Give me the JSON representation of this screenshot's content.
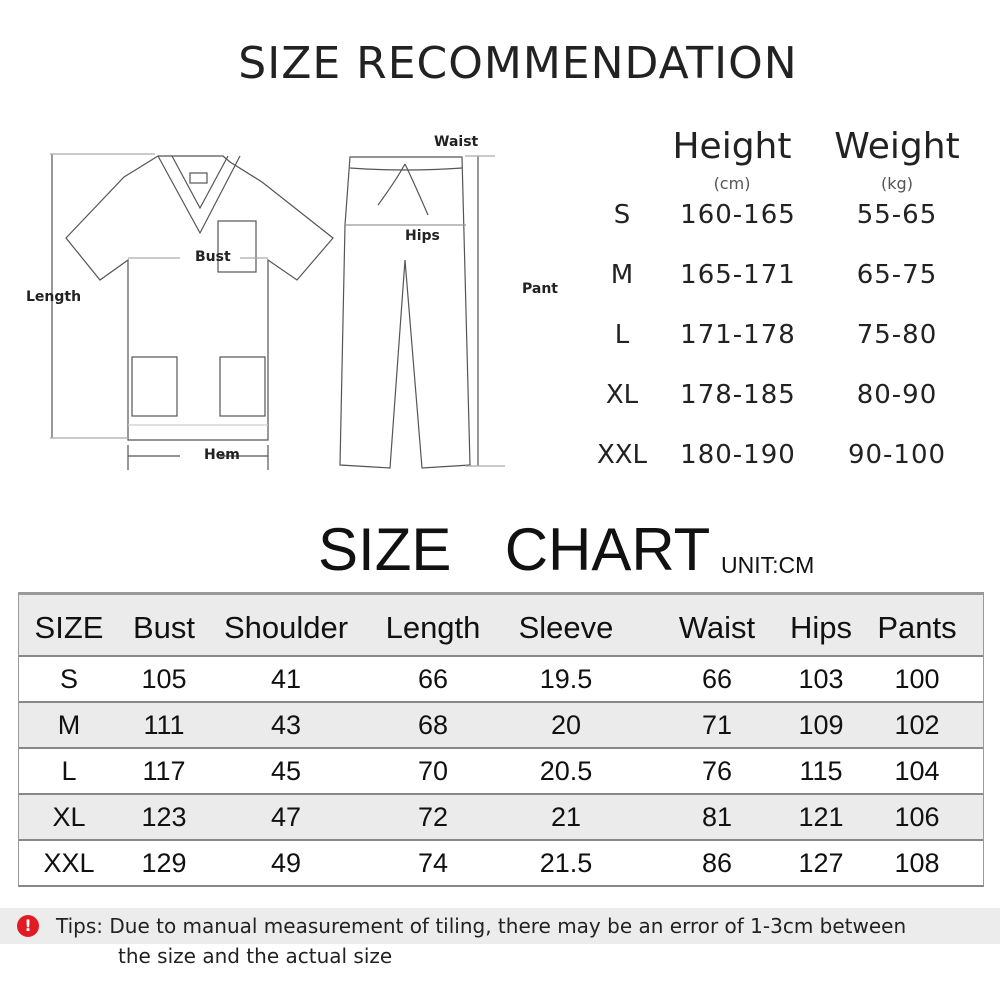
{
  "title": "SIZE RECOMMENDATION",
  "diagram": {
    "top_labels": {
      "bust": "Bust",
      "length": "Length",
      "hem": "Hem"
    },
    "pants_labels": {
      "waist": "Waist",
      "hips": "Hips",
      "pant": "Pant"
    }
  },
  "recommendation": {
    "height_label": "Height",
    "height_unit": "(cm)",
    "weight_label": "Weight",
    "weight_unit": "(kg)",
    "rows": [
      {
        "size": "S",
        "height": "160-165",
        "weight": "55-65"
      },
      {
        "size": "M",
        "height": "165-171",
        "weight": "65-75"
      },
      {
        "size": "L",
        "height": "171-178",
        "weight": "75-80"
      },
      {
        "size": "XL",
        "height": "178-185",
        "weight": "80-90"
      },
      {
        "size": "XXL",
        "height": "180-190",
        "weight": "90-100"
      }
    ]
  },
  "size_chart": {
    "title": "SIZE  CHART",
    "unit": "UNIT:CM",
    "headers": [
      "SIZE",
      "Bust",
      "Shoulder",
      "Length",
      "Sleeve",
      "Waist",
      "Hips",
      "Pants"
    ],
    "rows": [
      [
        "S",
        "105",
        "41",
        "66",
        "19.5",
        "66",
        "103",
        "100"
      ],
      [
        "M",
        "111",
        "43",
        "68",
        "20",
        "71",
        "109",
        "102"
      ],
      [
        "L",
        "117",
        "45",
        "70",
        "20.5",
        "76",
        "115",
        "104"
      ],
      [
        "XL",
        "123",
        "47",
        "72",
        "21",
        "81",
        "121",
        "106"
      ],
      [
        "XXL",
        "129",
        "49",
        "74",
        "21.5",
        "86",
        "127",
        "108"
      ]
    ]
  },
  "tips": {
    "icon": "exclamation-icon",
    "icon_color": "#e01b24",
    "line1": "Tips: Due to manual measurement of tiling, there may be an error of 1-3cm between",
    "line2": "the size and the actual size"
  }
}
